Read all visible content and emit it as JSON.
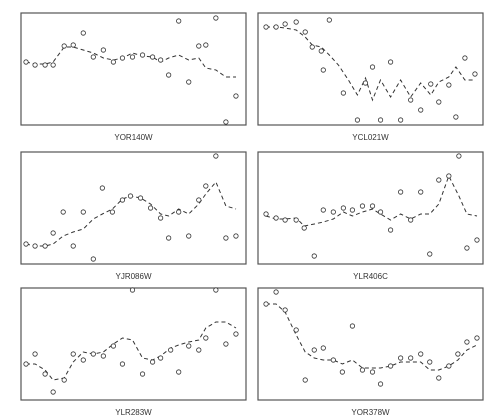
{
  "chart_data": [
    {
      "type": "scatter",
      "label": "YOR140W",
      "xlim": [
        0,
        224
      ],
      "ylim": [
        0,
        112
      ],
      "color": "#333333",
      "points": {
        "x": [
          5,
          14,
          24,
          32,
          43,
          52,
          62,
          72,
          82,
          92,
          101,
          111,
          121,
          131,
          139,
          147,
          157,
          167,
          177,
          184,
          194,
          204,
          214
        ],
        "values": [
          63,
          60,
          60,
          60,
          79,
          80,
          92,
          68,
          75,
          63,
          67,
          68,
          70,
          68,
          65,
          50,
          104,
          43,
          79,
          80,
          107,
          3,
          29
        ]
      },
      "line": {
        "x": [
          5,
          14,
          24,
          32,
          43,
          52,
          62,
          72,
          82,
          92,
          101,
          111,
          121,
          131,
          139,
          147,
          157,
          167,
          177,
          184,
          194,
          204,
          214
        ],
        "values": [
          63,
          61,
          61,
          63,
          78,
          78,
          75,
          72,
          67,
          65,
          67,
          72,
          69,
          68,
          63,
          67,
          70,
          65,
          67,
          57,
          55,
          48,
          48
        ]
      }
    },
    {
      "type": "scatter",
      "label": "YCL021W",
      "xlim": [
        0,
        224
      ],
      "ylim": [
        0,
        112
      ],
      "color": "#333333",
      "points": {
        "x": [
          8,
          18,
          27,
          38,
          47,
          54,
          63,
          65,
          71,
          85,
          99,
          107,
          114,
          122,
          132,
          142,
          152,
          162,
          172,
          180,
          190,
          197,
          206,
          216
        ],
        "values": [
          98,
          98,
          101,
          103,
          93,
          78,
          74,
          55,
          105,
          32,
          5,
          42,
          58,
          5,
          63,
          5,
          25,
          15,
          41,
          23,
          40,
          8,
          67,
          51
        ]
      },
      "line": {
        "x": [
          8,
          18,
          27,
          38,
          47,
          54,
          63,
          71,
          80,
          90,
          99,
          107,
          114,
          122,
          132,
          142,
          152,
          162,
          172,
          180,
          190,
          197,
          206,
          216
        ],
        "values": [
          98,
          98,
          97,
          95,
          88,
          80,
          78,
          70,
          60,
          45,
          30,
          47,
          25,
          45,
          28,
          45,
          28,
          42,
          30,
          43,
          48,
          58,
          45,
          45
        ]
      }
    },
    {
      "type": "scatter",
      "label": "YJR086W",
      "xlim": [
        0,
        224
      ],
      "ylim": [
        0,
        112
      ],
      "color": "#333333",
      "points": {
        "x": [
          5,
          14,
          24,
          32,
          42,
          52,
          62,
          72,
          81,
          91,
          101,
          109,
          119,
          129,
          139,
          147,
          157,
          167,
          177,
          184,
          194,
          204,
          214
        ],
        "values": [
          20,
          18,
          18,
          31,
          52,
          18,
          52,
          5,
          76,
          52,
          64,
          68,
          66,
          56,
          46,
          26,
          52,
          28,
          64,
          78,
          108,
          26,
          28
        ]
      },
      "line": {
        "x": [
          5,
          14,
          24,
          32,
          42,
          52,
          62,
          72,
          81,
          91,
          101,
          109,
          119,
          129,
          139,
          147,
          157,
          167,
          177,
          184,
          194,
          204,
          214
        ],
        "values": [
          20,
          18,
          18,
          20,
          28,
          32,
          35,
          45,
          50,
          55,
          65,
          68,
          66,
          60,
          50,
          48,
          55,
          50,
          60,
          70,
          82,
          58,
          55
        ]
      }
    },
    {
      "type": "scatter",
      "label": "YLR406C",
      "xlim": [
        0,
        224
      ],
      "ylim": [
        0,
        112
      ],
      "color": "#333333",
      "points": {
        "x": [
          8,
          18,
          27,
          38,
          46,
          56,
          65,
          75,
          85,
          94,
          104,
          114,
          122,
          132,
          142,
          152,
          162,
          171,
          180,
          190,
          200,
          208,
          218
        ],
        "values": [
          50,
          46,
          44,
          44,
          36,
          8,
          54,
          52,
          56,
          54,
          58,
          58,
          52,
          34,
          72,
          44,
          72,
          10,
          84,
          88,
          108,
          16,
          24
        ]
      },
      "line": {
        "x": [
          8,
          18,
          27,
          38,
          46,
          56,
          65,
          75,
          85,
          94,
          104,
          114,
          122,
          132,
          142,
          152,
          162,
          171,
          180,
          190,
          200,
          208,
          218
        ],
        "values": [
          48,
          45,
          45,
          46,
          38,
          40,
          42,
          45,
          52,
          48,
          52,
          55,
          50,
          44,
          50,
          45,
          50,
          50,
          60,
          88,
          68,
          50,
          48
        ]
      }
    },
    {
      "type": "scatter",
      "label": "YLR283W",
      "xlim": [
        0,
        224
      ],
      "ylim": [
        0,
        112
      ],
      "color": "#333333",
      "points": {
        "x": [
          5,
          14,
          24,
          32,
          43,
          52,
          62,
          72,
          82,
          92,
          101,
          111,
          121,
          131,
          139,
          149,
          157,
          167,
          177,
          184,
          194,
          204,
          214
        ],
        "values": [
          36,
          46,
          26,
          8,
          20,
          46,
          40,
          46,
          44,
          54,
          36,
          110,
          26,
          38,
          42,
          50,
          28,
          54,
          50,
          62,
          110,
          56,
          66
        ]
      },
      "line": {
        "x": [
          5,
          14,
          24,
          32,
          43,
          52,
          62,
          72,
          82,
          92,
          101,
          111,
          121,
          131,
          139,
          149,
          157,
          167,
          177,
          184,
          194,
          204,
          214
        ],
        "values": [
          36,
          36,
          30,
          20,
          22,
          38,
          48,
          46,
          48,
          56,
          62,
          60,
          42,
          40,
          44,
          52,
          55,
          58,
          60,
          72,
          78,
          78,
          72
        ]
      }
    },
    {
      "type": "scatter",
      "label": "YOR378W",
      "xlim": [
        0,
        224
      ],
      "ylim": [
        0,
        112
      ],
      "color": "#333333",
      "points": {
        "x": [
          8,
          18,
          27,
          38,
          47,
          56,
          65,
          75,
          84,
          94,
          104,
          114,
          122,
          132,
          142,
          152,
          162,
          171,
          180,
          190,
          199,
          208,
          218
        ],
        "values": [
          96,
          108,
          90,
          70,
          20,
          50,
          52,
          40,
          28,
          74,
          30,
          28,
          16,
          34,
          42,
          42,
          46,
          38,
          22,
          34,
          46,
          58,
          62
        ]
      },
      "line": {
        "x": [
          8,
          18,
          27,
          38,
          47,
          56,
          65,
          75,
          84,
          94,
          104,
          114,
          122,
          132,
          142,
          152,
          162,
          171,
          180,
          190,
          199,
          208,
          218
        ],
        "values": [
          96,
          96,
          88,
          65,
          48,
          42,
          40,
          40,
          36,
          40,
          32,
          32,
          32,
          34,
          38,
          38,
          38,
          30,
          30,
          34,
          40,
          50,
          55
        ]
      }
    }
  ]
}
